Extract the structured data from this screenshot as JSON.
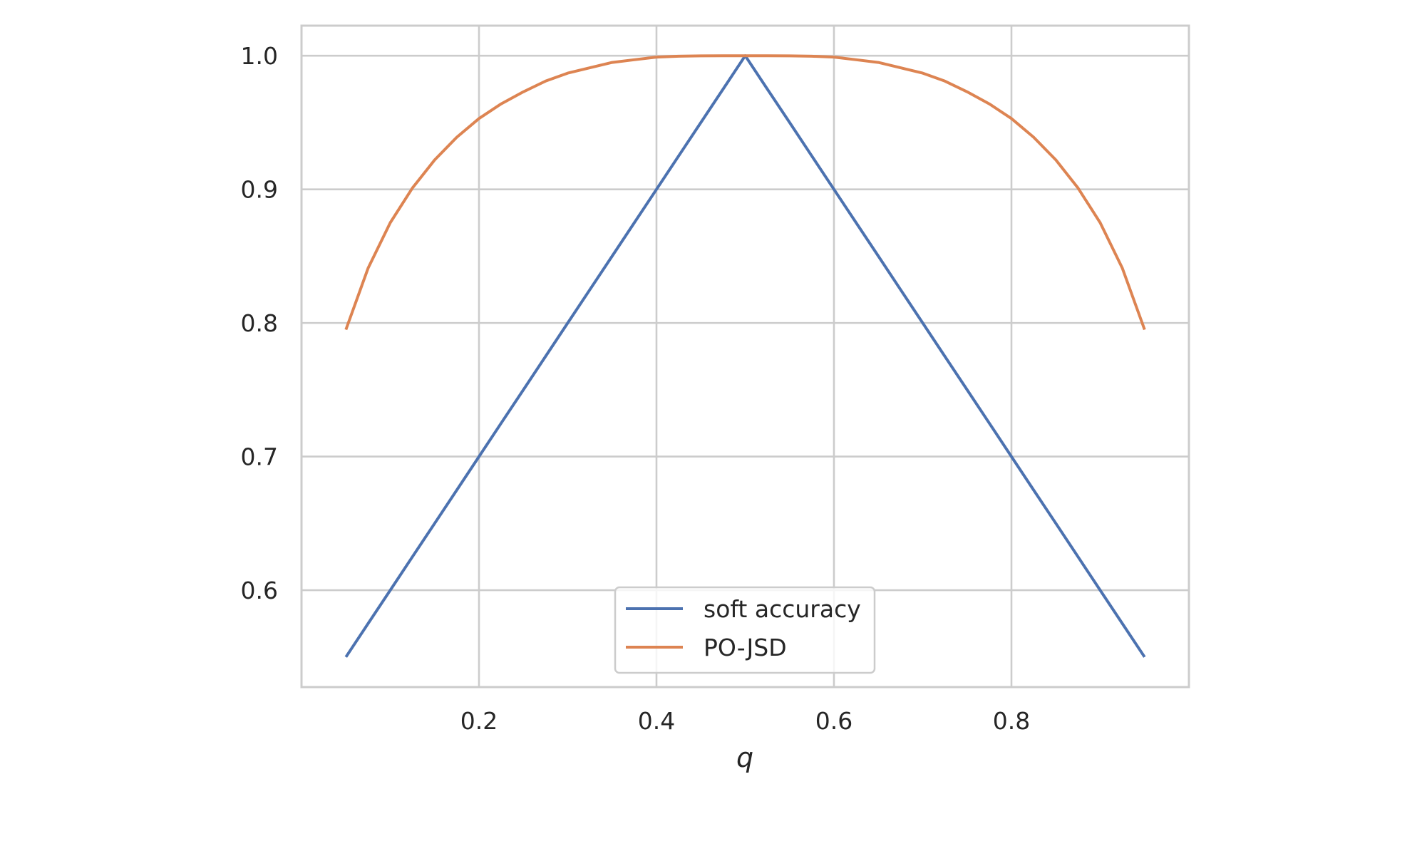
{
  "chart_data": {
    "type": "line",
    "title": "",
    "xlabel": "q",
    "ylabel": "",
    "xlim": [
      0.0,
      1.0
    ],
    "ylim": [
      0.5275,
      1.0225
    ],
    "xticks": [
      0.2,
      0.4,
      0.6,
      0.8
    ],
    "xtick_labels": [
      "0.2",
      "0.4",
      "0.6",
      "0.8"
    ],
    "yticks": [
      0.6,
      0.7,
      0.8,
      0.9,
      1.0
    ],
    "ytick_labels": [
      "0.6",
      "0.7",
      "0.8",
      "0.9",
      "1.0"
    ],
    "grid": true,
    "legend_position": "lower center",
    "x": [
      0.05,
      0.075,
      0.1,
      0.125,
      0.15,
      0.175,
      0.2,
      0.225,
      0.25,
      0.275,
      0.3,
      0.325,
      0.35,
      0.375,
      0.4,
      0.425,
      0.45,
      0.475,
      0.5,
      0.525,
      0.55,
      0.575,
      0.6,
      0.625,
      0.65,
      0.675,
      0.7,
      0.725,
      0.75,
      0.775,
      0.8,
      0.825,
      0.85,
      0.875,
      0.9,
      0.925,
      0.95
    ],
    "series": [
      {
        "name": "soft accuracy",
        "color": "#4c72b0",
        "values": [
          0.55,
          0.575,
          0.6,
          0.625,
          0.65,
          0.675,
          0.7,
          0.725,
          0.75,
          0.775,
          0.8,
          0.825,
          0.85,
          0.875,
          0.9,
          0.925,
          0.95,
          0.975,
          1.0,
          0.975,
          0.95,
          0.925,
          0.9,
          0.875,
          0.85,
          0.825,
          0.8,
          0.775,
          0.75,
          0.725,
          0.7,
          0.675,
          0.65,
          0.625,
          0.6,
          0.575,
          0.55
        ]
      },
      {
        "name": "PO-JSD",
        "color": "#dd8452",
        "values": [
          0.795,
          0.841,
          0.875,
          0.901,
          0.922,
          0.939,
          0.953,
          0.964,
          0.973,
          0.981,
          0.987,
          0.991,
          0.995,
          0.997,
          0.999,
          0.9996,
          0.9999,
          1.0,
          1.0,
          1.0,
          0.9999,
          0.9996,
          0.999,
          0.997,
          0.995,
          0.991,
          0.987,
          0.981,
          0.973,
          0.964,
          0.953,
          0.939,
          0.922,
          0.901,
          0.875,
          0.841,
          0.795
        ]
      }
    ]
  },
  "colors": {
    "grid": "#cccccc",
    "text": "#262626",
    "background": "#ffffff"
  }
}
